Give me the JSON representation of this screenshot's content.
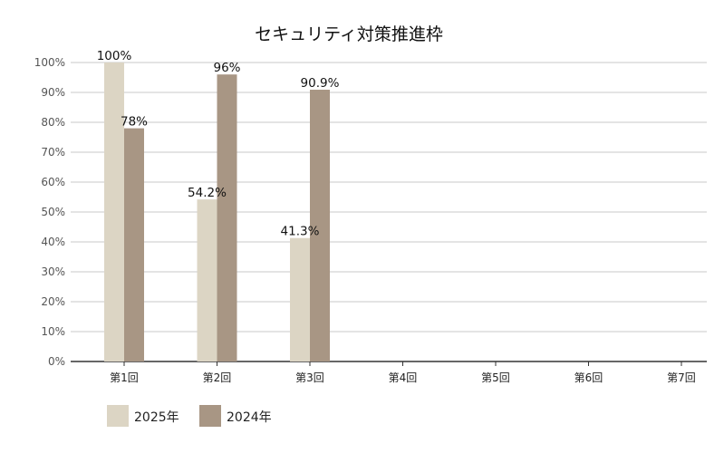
{
  "chart_data": {
    "type": "bar",
    "title": "セキュリティ対策推進枠",
    "categories": [
      "第1回",
      "第2回",
      "第3回",
      "第4回",
      "第5回",
      "第6回",
      "第7回"
    ],
    "series": [
      {
        "name": "2025年",
        "values": [
          100,
          54.2,
          41.3,
          null,
          null,
          null,
          null
        ],
        "labels": [
          "100%",
          "54.2%",
          "41.3%",
          "",
          "",
          "",
          ""
        ],
        "color": "#DCD5C4"
      },
      {
        "name": "2024年",
        "values": [
          78,
          96,
          90.9,
          null,
          null,
          null,
          null
        ],
        "labels": [
          "78%",
          "96%",
          "90.9%",
          "",
          "",
          "",
          ""
        ],
        "color": "#A89684"
      }
    ],
    "y_ticks": [
      "0%",
      "10%",
      "20%",
      "30%",
      "40%",
      "50%",
      "60%",
      "70%",
      "80%",
      "90%",
      "100%"
    ],
    "ylim": [
      0,
      100
    ],
    "grid": true,
    "legend_position": "bottom-left"
  }
}
